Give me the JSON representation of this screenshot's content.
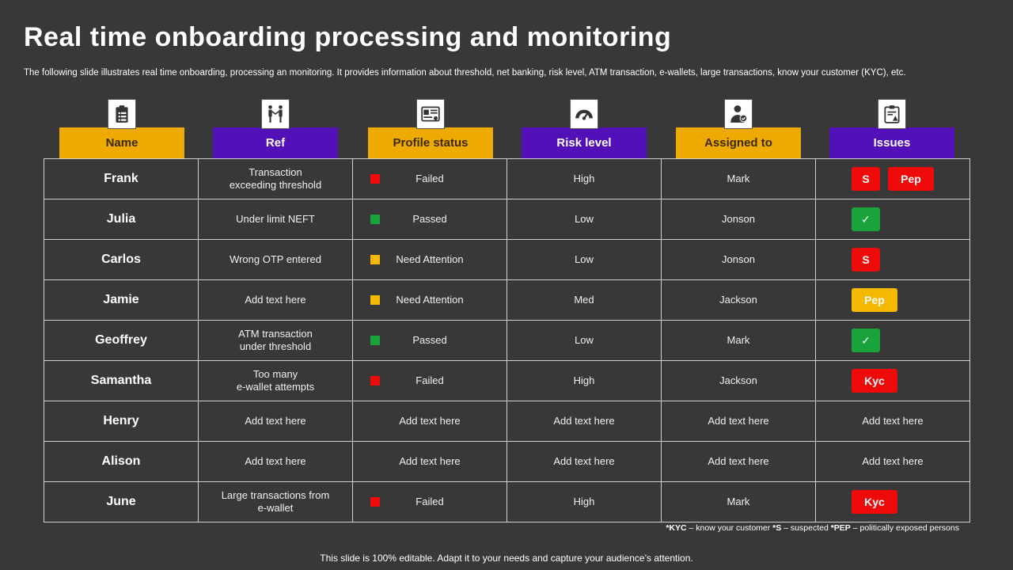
{
  "title": "Real time onboarding processing and monitoring",
  "subtitle": "The following slide illustrates real time onboarding, processing an monitoring. It provides information about threshold, net banking, risk level, ATM  transaction, e-wallets, large transactions, know your customer (KYC), etc.",
  "colors": {
    "background": "#383838",
    "header_yellow": "#efaa00",
    "header_purple": "#5211b8",
    "status_failed": "#ef0a0a",
    "status_passed": "#1aa33b",
    "status_attention": "#f4b800"
  },
  "headers": [
    {
      "label": "Name",
      "icon": "clipboard-list-icon",
      "color": "yellow"
    },
    {
      "label": "Ref",
      "icon": "people-handshake-icon",
      "color": "purple"
    },
    {
      "label": "Profile status",
      "icon": "id-card-icon",
      "color": "yellow"
    },
    {
      "label": "Risk level",
      "icon": "gauge-icon",
      "color": "purple"
    },
    {
      "label": "Assigned to",
      "icon": "user-check-icon",
      "color": "yellow"
    },
    {
      "label": "Issues",
      "icon": "report-clipboard-icon",
      "color": "purple"
    }
  ],
  "rows": [
    {
      "name": "Frank",
      "ref": "Transaction\nexceeding threshold",
      "status": "Failed",
      "status_color": "red",
      "risk": "High",
      "assigned": "Mark",
      "issues": [
        {
          "label": "S",
          "kind": "s",
          "color": "red"
        },
        {
          "label": "Pep",
          "kind": "pep",
          "color": "red"
        }
      ]
    },
    {
      "name": "Julia",
      "ref": "Under limit NEFT",
      "status": "Passed",
      "status_color": "green",
      "risk": "Low",
      "assigned": "Jonson",
      "issues": [
        {
          "label": "✓",
          "kind": "check",
          "color": "green"
        }
      ]
    },
    {
      "name": "Carlos",
      "ref": "Wrong OTP entered",
      "status": "Need Attention",
      "status_color": "yellow",
      "risk": "Low",
      "assigned": "Jonson",
      "issues": [
        {
          "label": "S",
          "kind": "s",
          "color": "red"
        }
      ]
    },
    {
      "name": "Jamie",
      "ref": "Add text here",
      "status": "Need Attention",
      "status_color": "yellow",
      "risk": "Med",
      "assigned": "Jackson",
      "issues": [
        {
          "label": "Pep",
          "kind": "pep",
          "color": "yellow"
        }
      ]
    },
    {
      "name": "Geoffrey",
      "ref": "ATM transaction\nunder threshold",
      "status": "Passed",
      "status_color": "green",
      "risk": "Low",
      "assigned": "Mark",
      "issues": [
        {
          "label": "✓",
          "kind": "check",
          "color": "green"
        }
      ]
    },
    {
      "name": "Samantha",
      "ref": "Too many\ne-wallet attempts",
      "status": "Failed",
      "status_color": "red",
      "risk": "High",
      "assigned": "Jackson",
      "issues": [
        {
          "label": "Kyc",
          "kind": "kyc",
          "color": "red"
        }
      ]
    },
    {
      "name": "Henry",
      "ref": "Add text here",
      "status": "Add text here",
      "status_color": null,
      "risk": "Add text here",
      "assigned": "Add text here",
      "issues_text": "Add text here"
    },
    {
      "name": "Alison",
      "ref": "Add text here",
      "status": "Add text here",
      "status_color": null,
      "risk": "Add text here",
      "assigned": "Add text here",
      "issues_text": "Add text here"
    },
    {
      "name": "June",
      "ref": "Large transactions from\ne-wallet",
      "status": "Failed",
      "status_color": "red",
      "risk": "High",
      "assigned": "Mark",
      "issues": [
        {
          "label": "Kyc",
          "kind": "kyc",
          "color": "red"
        }
      ]
    }
  ],
  "footnote": {
    "kyc_key": "*KYC",
    "kyc_text": " – know your customer ",
    "s_key": "*S",
    "s_text": " – suspected ",
    "pep_key": "*PEP",
    "pep_text": " – politically exposed persons"
  },
  "bottom_note": "This slide is 100% editable. Adapt it to your needs and capture your audience’s attention."
}
